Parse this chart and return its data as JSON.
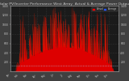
{
  "title": "Solar PV/Inverter Performance West Array  Actual & Average Power Output",
  "title_fontsize": 3.2,
  "bg_color": "#404040",
  "plot_bg_color": "#1a1a1a",
  "grid_color": "#555555",
  "fill_color": "#dd0000",
  "line_color": "#ff2200",
  "avg_line_color": "#aaddff",
  "legend_actual_color": "#ff0000",
  "legend_avg_color": "#2255ff",
  "legend_actual_label": "Actual",
  "legend_avg_label": "Average",
  "ylim": [
    0,
    1400
  ],
  "yticks_left": [
    200,
    400,
    600,
    800,
    1000,
    1200,
    1400
  ],
  "yticks_right": [
    200,
    400,
    600,
    800,
    1000,
    1200,
    1400
  ],
  "num_points": 365,
  "avg_value": 130
}
